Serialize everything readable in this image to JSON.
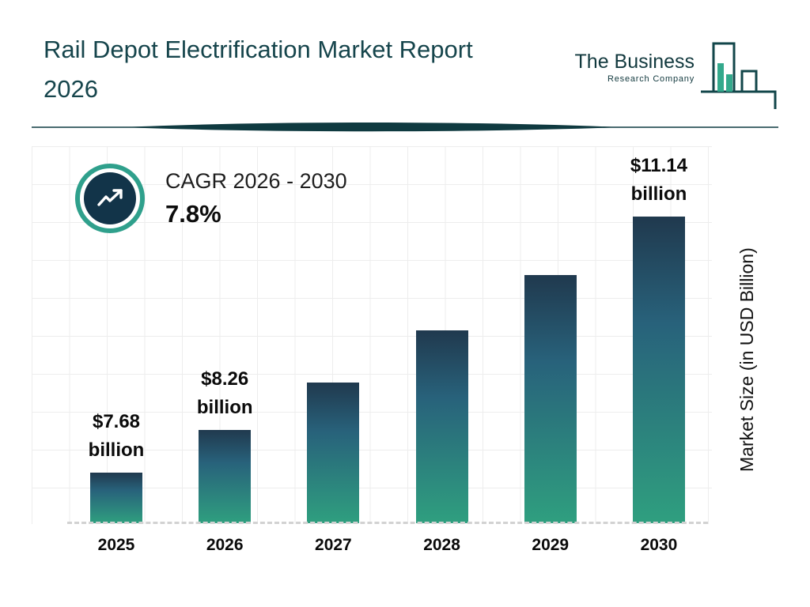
{
  "header": {
    "title_line1": "Rail Depot Electrification Market Report",
    "title_line2": "2026"
  },
  "logo": {
    "line1": "The Business",
    "line2": "Research Company"
  },
  "cagr": {
    "label": "CAGR 2026 - 2030",
    "value": "7.8%"
  },
  "chart_data": {
    "type": "bar",
    "title": "Rail Depot Electrification Market Report 2026",
    "categories": [
      "2025",
      "2026",
      "2027",
      "2028",
      "2029",
      "2030"
    ],
    "values": [
      7.68,
      8.26,
      8.9,
      9.6,
      10.35,
      11.14
    ],
    "unit": "USD Billion",
    "value_labels": [
      {
        "index": 0,
        "line1": "$7.68",
        "line2": "billion"
      },
      {
        "index": 1,
        "line1": "$8.26",
        "line2": "billion"
      },
      {
        "index": 5,
        "line1": "$11.14",
        "line2": "billion"
      }
    ],
    "xlabel": "",
    "ylabel": "Market Size (in USD Billion)",
    "ylim": [
      7,
      11.5
    ],
    "grid": true,
    "legend_position": "none",
    "colors": {
      "bar_top": "#20394e",
      "bar_bottom": "#2f9f7f",
      "title": "#16454c",
      "accent_ring": "#2fa08c",
      "badge_circle": "#123449",
      "divider": "#0f3a40"
    }
  }
}
